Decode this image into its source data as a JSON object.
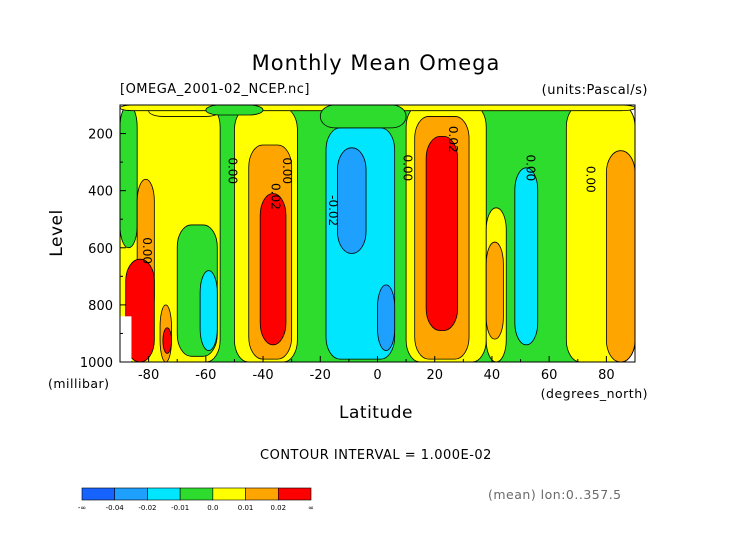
{
  "chart_data": {
    "type": "heatmap",
    "title": "Monthly Mean Omega",
    "file_label": "[OMEGA_2001-02_NCEP.nc]",
    "units_label": "(units:Pascal/s)",
    "xlabel": "Latitude",
    "x_unit": "(degrees_north)",
    "ylabel": "Level",
    "y_unit": "(millibar)",
    "x_ticks": [
      "-80",
      "-60",
      "-40",
      "-20",
      "0",
      "20",
      "40",
      "60",
      "80"
    ],
    "x_tick_values": [
      -80,
      -60,
      -40,
      -20,
      0,
      20,
      40,
      60,
      80
    ],
    "y_ticks": [
      "200",
      "400",
      "600",
      "800",
      "1000"
    ],
    "y_tick_values": [
      200,
      400,
      600,
      800,
      1000
    ],
    "xlim": [
      -90,
      90
    ],
    "ylim": [
      100,
      1000
    ],
    "y_inverted": true,
    "contour_interval_text": "CONTOUR INTERVAL = 1.000E-02",
    "contour_labels": [
      "0.00",
      "0.00",
      "0.00",
      "0.00",
      "0.00",
      "0.00",
      "-0.02",
      "0.02",
      "0.02"
    ],
    "colorbar": {
      "labels": [
        "-∞",
        "-0.04",
        "-0.02",
        "-0.01",
        "0.0",
        "0.01",
        "0.02",
        "∞"
      ],
      "colors": [
        "#1763ff",
        "#1ea0ff",
        "#00e6ff",
        "#2ddc2d",
        "#ffff00",
        "#ffa500",
        "#ff0000"
      ]
    },
    "footnote": "(mean) lon:0..357.5",
    "colors": {
      "deep_blue": "#1763ff",
      "blue": "#1ea0ff",
      "cyan": "#00e6ff",
      "green": "#2ddc2d",
      "yellow": "#ffff00",
      "orange": "#ffa500",
      "red": "#ff0000"
    },
    "regions": [
      {
        "level": "green",
        "lat": [
          -90,
          90
        ],
        "p": [
          100,
          1000
        ]
      },
      {
        "level": "yellow",
        "lat": [
          -90,
          -55
        ],
        "p": [
          100,
          1000
        ]
      },
      {
        "level": "green",
        "lat": [
          -90,
          -84
        ],
        "p": [
          100,
          600
        ]
      },
      {
        "level": "orange",
        "lat": [
          -84,
          -78
        ],
        "p": [
          360,
          850
        ]
      },
      {
        "level": "red",
        "lat": [
          -88,
          -78
        ],
        "p": [
          640,
          1000
        ]
      },
      {
        "level": "orange",
        "lat": [
          -76,
          -72
        ],
        "p": [
          800,
          1000
        ]
      },
      {
        "level": "red",
        "lat": [
          -75,
          -72
        ],
        "p": [
          880,
          970
        ]
      },
      {
        "level": "green",
        "lat": [
          -70,
          -56
        ],
        "p": [
          520,
          980
        ]
      },
      {
        "level": "cyan",
        "lat": [
          -62,
          -56
        ],
        "p": [
          680,
          960
        ]
      },
      {
        "level": "yellow",
        "lat": [
          -50,
          -28
        ],
        "p": [
          110,
          1000
        ]
      },
      {
        "level": "orange",
        "lat": [
          -45,
          -30
        ],
        "p": [
          240,
          990
        ]
      },
      {
        "level": "red",
        "lat": [
          -41,
          -32
        ],
        "p": [
          410,
          940
        ]
      },
      {
        "level": "yellow",
        "lat": [
          -80,
          -55
        ],
        "p": [
          100,
          140
        ]
      },
      {
        "level": "cyan",
        "lat": [
          -18,
          6
        ],
        "p": [
          180,
          990
        ]
      },
      {
        "level": "blue",
        "lat": [
          -14,
          -4
        ],
        "p": [
          250,
          620
        ]
      },
      {
        "level": "blue",
        "lat": [
          0,
          6
        ],
        "p": [
          730,
          960
        ]
      },
      {
        "level": "yellow",
        "lat": [
          10,
          38
        ],
        "p": [
          100,
          1000
        ]
      },
      {
        "level": "orange",
        "lat": [
          13,
          32
        ],
        "p": [
          140,
          990
        ]
      },
      {
        "level": "red",
        "lat": [
          17,
          28
        ],
        "p": [
          210,
          890
        ]
      },
      {
        "level": "yellow",
        "lat": [
          38,
          45
        ],
        "p": [
          460,
          1000
        ]
      },
      {
        "level": "orange",
        "lat": [
          38,
          44
        ],
        "p": [
          580,
          920
        ]
      },
      {
        "level": "cyan",
        "lat": [
          48,
          56
        ],
        "p": [
          320,
          940
        ]
      },
      {
        "level": "yellow",
        "lat": [
          66,
          90
        ],
        "p": [
          100,
          1000
        ]
      },
      {
        "level": "orange",
        "lat": [
          80,
          90
        ],
        "p": [
          260,
          1000
        ]
      },
      {
        "level": "yellow",
        "lat": [
          -90,
          90
        ],
        "p": [
          100,
          120
        ]
      },
      {
        "level": "green",
        "lat": [
          -60,
          -40
        ],
        "p": [
          100,
          135
        ]
      },
      {
        "level": "green",
        "lat": [
          -20,
          10
        ],
        "p": [
          100,
          180
        ]
      }
    ]
  }
}
